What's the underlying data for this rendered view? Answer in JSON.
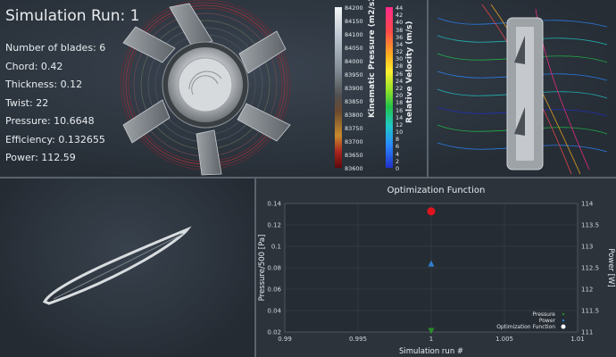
{
  "sim": {
    "title": "Simulation Run: 1",
    "params": [
      "Number of blades: 6",
      "Chord: 0.42",
      "Thickness: 0.12",
      "Twist: 22",
      "Pressure: 10.6648",
      "Efficiency: 0.132655",
      "Power: 112.59"
    ]
  },
  "pressure_bar": {
    "title": "Kinematic Pressure (m2/s2)",
    "ticks": [
      "84200",
      "84150",
      "84100",
      "84050",
      "84000",
      "83950",
      "83900",
      "83850",
      "83800",
      "83750",
      "83700",
      "83650",
      "83600"
    ]
  },
  "velocity_bar": {
    "title": "Relative Velocity (m/s)",
    "ticks": [
      "44",
      "42",
      "40",
      "38",
      "36",
      "34",
      "32",
      "30",
      "28",
      "26",
      "24",
      "22",
      "20",
      "18",
      "16",
      "14",
      "12",
      "10",
      "8",
      "6",
      "4",
      "2",
      "0"
    ]
  },
  "colors": {
    "pressure": "#2a8c2a",
    "power": "#2e7fd0",
    "optimization": "#e0141e"
  },
  "chart_data": {
    "type": "scatter",
    "title": "Optimization Function",
    "xlabel": "Simulation run #",
    "ylabel": "Pressure/500 [Pa]",
    "y2label": "Power [W]",
    "xlim": [
      0.99,
      1.01
    ],
    "ylim": [
      0.02,
      0.14
    ],
    "y2lim": [
      111,
      114
    ],
    "xticks": [
      "0.99",
      "0.995",
      "1",
      "1.005",
      "1.01"
    ],
    "yticks": [
      "0.02",
      "0.04",
      "0.06",
      "0.08",
      "0.1",
      "0.12",
      "0.14"
    ],
    "y2ticks": [
      "111",
      "111.5",
      "112",
      "112.5",
      "113",
      "113.5",
      "114"
    ],
    "legend_position": "bottom-right",
    "series": [
      {
        "name": "Pressure",
        "marker": "triangle-down",
        "axis": "left",
        "x": [
          1
        ],
        "y": [
          0.0213
        ]
      },
      {
        "name": "Power",
        "marker": "triangle-up",
        "axis": "right",
        "x": [
          1
        ],
        "y": [
          112.59
        ]
      },
      {
        "name": "Optimization Function",
        "marker": "circle",
        "axis": "left",
        "x": [
          1
        ],
        "y": [
          0.1327
        ]
      }
    ]
  }
}
